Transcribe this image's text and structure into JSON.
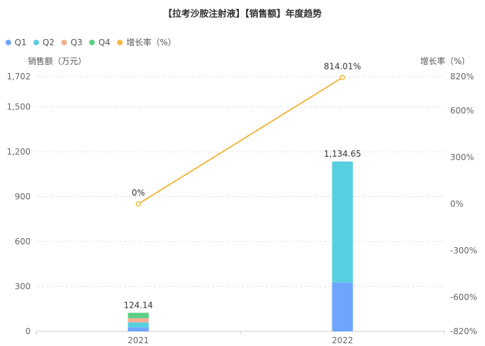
{
  "chart_data": {
    "type": "bar",
    "title": "【拉考沙胺注射液】【销售额】年度趋势",
    "categories": [
      "2021",
      "2022"
    ],
    "series": [
      {
        "name": "Q1",
        "type": "bar",
        "color": "#6ea6ff",
        "values": [
          27,
          326
        ]
      },
      {
        "name": "Q2",
        "type": "bar",
        "color": "#58cfe0",
        "values": [
          33,
          808.65
        ]
      },
      {
        "name": "Q3",
        "type": "bar",
        "color": "#f6ad94",
        "values": [
          28,
          0
        ]
      },
      {
        "name": "Q4",
        "type": "bar",
        "color": "#5dd086",
        "values": [
          36.14,
          0
        ]
      },
      {
        "name": "增长率（%）",
        "type": "line",
        "axis": "right",
        "color": "#f2b845",
        "values": [
          0,
          814.01
        ]
      }
    ],
    "totals": [
      "124.14",
      "1,134.65"
    ],
    "growth_labels": [
      "0%",
      "814.01%"
    ],
    "ylabel_left": "销售额（万元）",
    "ylabel_right": "增长率（%）",
    "left_ticks": [
      "0",
      "300",
      "600",
      "900",
      "1,200",
      "1,500",
      "1,702"
    ],
    "left_tick_values": [
      0,
      300,
      600,
      900,
      1200,
      1500,
      1702
    ],
    "right_ticks": [
      "-820%",
      "-600%",
      "-300%",
      "0%",
      "300%",
      "600%",
      "820%"
    ],
    "right_tick_values": [
      -820,
      -600,
      -300,
      0,
      300,
      600,
      820
    ],
    "ylim_left": [
      0,
      1702
    ],
    "ylim_right": [
      -820,
      820
    ],
    "grid": true,
    "legend_position": "top-left"
  }
}
